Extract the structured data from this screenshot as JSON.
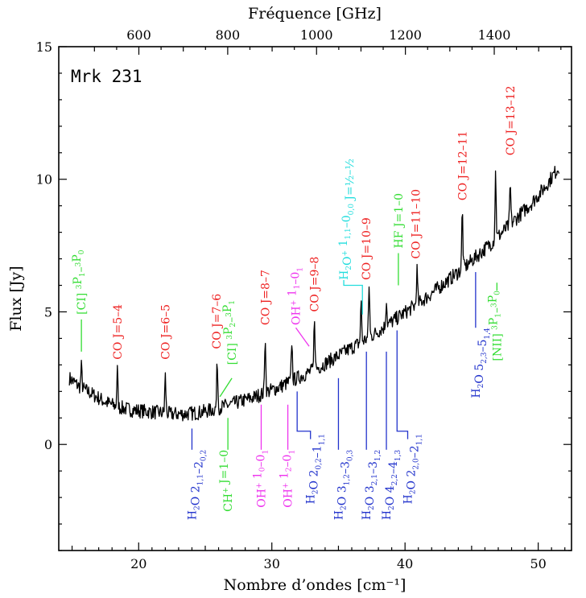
{
  "chart_data": {
    "type": "line",
    "object": "Mrk 231",
    "xlabel": "Nombre d’ondes [cm⁻¹]",
    "top_xlabel": "Fréquence [GHz]",
    "ylabel": "Flux [Jy]",
    "xlim": [
      14,
      52.5
    ],
    "ylim": [
      -4,
      15
    ],
    "xticks": [
      20,
      30,
      40,
      50
    ],
    "yticks": [
      0,
      5,
      10,
      15
    ],
    "top_ticks_ghz": [
      600,
      800,
      1000,
      1200,
      1400
    ],
    "continuum": {
      "description_points": [
        [
          14.8,
          2.5
        ],
        [
          15.5,
          2.2
        ],
        [
          16.5,
          1.9
        ],
        [
          17.5,
          1.6
        ],
        [
          18.5,
          1.4
        ],
        [
          19.5,
          1.3
        ],
        [
          20.5,
          1.25
        ],
        [
          21.5,
          1.2
        ],
        [
          22.5,
          1.15
        ],
        [
          23.5,
          1.15
        ],
        [
          24.5,
          1.2
        ],
        [
          25.5,
          1.3
        ],
        [
          26.5,
          1.45
        ],
        [
          27.5,
          1.6
        ],
        [
          28.5,
          1.75
        ],
        [
          29.5,
          1.95
        ],
        [
          30.5,
          2.15
        ],
        [
          31.5,
          2.4
        ],
        [
          32.5,
          2.65
        ],
        [
          33.5,
          2.9
        ],
        [
          34.5,
          3.2
        ],
        [
          35.5,
          3.5
        ],
        [
          36.5,
          3.8
        ],
        [
          37.5,
          4.1
        ],
        [
          38.5,
          4.45
        ],
        [
          39.5,
          4.8
        ],
        [
          40.5,
          5.15
        ],
        [
          41.5,
          5.5
        ],
        [
          42.5,
          5.9
        ],
        [
          43.5,
          6.3
        ],
        [
          44.5,
          6.7
        ],
        [
          45.5,
          7.15
        ],
        [
          46.5,
          7.6
        ],
        [
          47.5,
          8.1
        ],
        [
          48.5,
          8.6
        ],
        [
          49.5,
          9.1
        ],
        [
          50.5,
          9.7
        ],
        [
          51.6,
          10.5
        ]
      ],
      "peaks": [
        {
          "x": 15.7,
          "h": 0.8
        },
        {
          "x": 18.4,
          "h": 1.4
        },
        {
          "x": 22.0,
          "h": 1.4
        },
        {
          "x": 25.9,
          "h": 1.8
        },
        {
          "x": 29.5,
          "h": 2.2
        },
        {
          "x": 31.5,
          "h": 1.5
        },
        {
          "x": 33.2,
          "h": 2.0
        },
        {
          "x": 36.7,
          "h": 1.5
        },
        {
          "x": 37.3,
          "h": 2.0
        },
        {
          "x": 38.6,
          "h": 1.0
        },
        {
          "x": 40.9,
          "h": 1.3
        },
        {
          "x": 44.3,
          "h": 2.2
        },
        {
          "x": 46.8,
          "h": 2.5
        },
        {
          "x": 47.9,
          "h": 1.5
        }
      ]
    },
    "labels": [
      {
        "color": "#33dd33",
        "x": 15.7,
        "anchor": 3.5,
        "pos": 3.6,
        "parts": [
          [
            "[CI] "
          ],
          [
            "3",
            "sup"
          ],
          [
            "P"
          ],
          [
            "1",
            "sub"
          ],
          [
            "–"
          ],
          [
            "3",
            "sup"
          ],
          [
            "P"
          ],
          [
            "0",
            "sub"
          ]
        ]
      },
      {
        "color": "#ee2222",
        "x": 18.4,
        "pos": 3.2,
        "parts": [
          [
            "CO J=5–4"
          ]
        ]
      },
      {
        "color": "#ee2222",
        "x": 22.0,
        "pos": 3.2,
        "parts": [
          [
            "CO J=6–5"
          ]
        ]
      },
      {
        "color": "#ee2222",
        "x": 25.85,
        "pos": 3.6,
        "parts": [
          [
            "CO J=7–6"
          ]
        ]
      },
      {
        "color": "#33dd33",
        "x": 27.0,
        "anchor": 2.5,
        "leaderTo": 26.1,
        "pos": 3.0,
        "parts": [
          [
            "[CI] "
          ],
          [
            "3",
            "sup"
          ],
          [
            "P"
          ],
          [
            "2",
            "sub"
          ],
          [
            "–"
          ],
          [
            "3",
            "sup"
          ],
          [
            "P"
          ],
          [
            "1",
            "sub"
          ]
        ]
      },
      {
        "color": "#ee2222",
        "x": 29.5,
        "pos": 4.5,
        "parts": [
          [
            "CO J=8–7"
          ]
        ]
      },
      {
        "color": "#ee33ee",
        "x": 31.8,
        "anchor": 4.4,
        "leaderTo": 32.8,
        "pos": 4.5,
        "parts": [
          [
            "OH"
          ],
          [
            "+",
            "sup"
          ],
          [
            " 1"
          ],
          [
            "1",
            "sub"
          ],
          [
            "–0"
          ],
          [
            "1",
            "sub"
          ]
        ]
      },
      {
        "color": "#ee2222",
        "x": 33.2,
        "pos": 5.0,
        "parts": [
          [
            "CO J=9–8"
          ]
        ]
      },
      {
        "color": "#22dddd",
        "x": 35.4,
        "anchor": 6.0,
        "bracketTo": 36.8,
        "pos": 6.2,
        "parts": [
          [
            "H"
          ],
          [
            "2",
            "sub"
          ],
          [
            "O"
          ],
          [
            "+",
            "sup"
          ],
          [
            " 1"
          ],
          [
            "1,1",
            "sub"
          ],
          [
            "–0"
          ],
          [
            "0,0",
            "sub"
          ],
          [
            " J=½–½"
          ]
        ]
      },
      {
        "color": "#ee2222",
        "x": 37.1,
        "pos": 6.2,
        "parts": [
          [
            "CO J=10–9"
          ]
        ]
      },
      {
        "color": "#33dd33",
        "x": 39.5,
        "anchor": 6.0,
        "pos": 6.9,
        "parts": [
          [
            "HF J=1–0"
          ]
        ]
      },
      {
        "color": "#ee2222",
        "x": 40.8,
        "pos": 7.0,
        "parts": [
          [
            "CO J=11–10"
          ]
        ]
      },
      {
        "color": "#ee2222",
        "x": 44.3,
        "pos": 9.2,
        "parts": [
          [
            "CO J=12–11"
          ]
        ]
      },
      {
        "color": "#ee2222",
        "x": 47.9,
        "pos": 10.9,
        "parts": [
          [
            "CO J=13–12"
          ]
        ]
      },
      {
        "color": "#33dd33",
        "x": 46.9,
        "anchor": 6.1,
        "pos": 5.8,
        "below": true,
        "parts": [
          [
            "[NII] "
          ],
          [
            "3",
            "sup"
          ],
          [
            "P"
          ],
          [
            "1",
            "sub"
          ],
          [
            "–"
          ],
          [
            "3",
            "sup"
          ],
          [
            "P"
          ],
          [
            "0",
            "sub"
          ]
        ]
      },
      {
        "color": "#2233cc",
        "x": 45.3,
        "anchor": 6.5,
        "pos": 4.4,
        "below": true,
        "parts": [
          [
            "H"
          ],
          [
            "2",
            "sub"
          ],
          [
            "O 5"
          ],
          [
            "2,3",
            "sub"
          ],
          [
            "–5"
          ],
          [
            "1,4",
            "sub"
          ]
        ]
      },
      {
        "color": "#2233cc",
        "x": 24.0,
        "anchor": 0.6,
        "pos": -0.2,
        "below": true,
        "parts": [
          [
            "H"
          ],
          [
            "2",
            "sub"
          ],
          [
            "O 2"
          ],
          [
            "1,1",
            "sub"
          ],
          [
            "–2"
          ],
          [
            "0,2",
            "sub"
          ]
        ]
      },
      {
        "color": "#33dd33",
        "x": 26.7,
        "anchor": 1.0,
        "pos": -0.2,
        "below": true,
        "parts": [
          [
            "CH"
          ],
          [
            "+",
            "sup"
          ],
          [
            " J=1–0"
          ]
        ]
      },
      {
        "color": "#ee33ee",
        "x": 29.2,
        "anchor": 1.5,
        "pos": -0.2,
        "below": true,
        "parts": [
          [
            "OH"
          ],
          [
            "+",
            "sup"
          ],
          [
            " 1"
          ],
          [
            "0",
            "sub"
          ],
          [
            "–0"
          ],
          [
            "1",
            "sub"
          ]
        ]
      },
      {
        "color": "#ee33ee",
        "x": 31.2,
        "anchor": 1.5,
        "pos": -0.2,
        "below": true,
        "parts": [
          [
            "OH"
          ],
          [
            "+",
            "sup"
          ],
          [
            " 1"
          ],
          [
            "2",
            "sub"
          ],
          [
            "–0"
          ],
          [
            "1",
            "sub"
          ]
        ]
      },
      {
        "color": "#2233cc",
        "x": 32.9,
        "anchor": 2.0,
        "bracketFrom": 31.9,
        "pos": 0.4,
        "below": true,
        "parts": [
          [
            "H"
          ],
          [
            "2",
            "sub"
          ],
          [
            "O 2"
          ],
          [
            "0,2",
            "sub"
          ],
          [
            "–1"
          ],
          [
            "1,1",
            "sub"
          ]
        ]
      },
      {
        "color": "#2233cc",
        "x": 35.0,
        "anchor": 2.5,
        "pos": -0.2,
        "below": true,
        "parts": [
          [
            "H"
          ],
          [
            "2",
            "sub"
          ],
          [
            "O 3"
          ],
          [
            "1,2",
            "sub"
          ],
          [
            "–3"
          ],
          [
            "0,3",
            "sub"
          ]
        ]
      },
      {
        "color": "#2233cc",
        "x": 37.1,
        "anchor": 3.5,
        "pos": -0.2,
        "below": true,
        "parts": [
          [
            "H"
          ],
          [
            "2",
            "sub"
          ],
          [
            "O 3"
          ],
          [
            "2,1",
            "sub"
          ],
          [
            "–3"
          ],
          [
            "1,2",
            "sub"
          ]
        ]
      },
      {
        "color": "#2233cc",
        "x": 38.6,
        "anchor": 3.5,
        "pos": -0.2,
        "below": true,
        "parts": [
          [
            "H"
          ],
          [
            "2",
            "sub"
          ],
          [
            "O 4"
          ],
          [
            "2,2",
            "sub"
          ],
          [
            "–4"
          ],
          [
            "1,3",
            "sub"
          ]
        ]
      },
      {
        "color": "#2233cc",
        "x": 40.2,
        "anchor": 4.3,
        "bracketFrom": 39.4,
        "pos": 0.4,
        "below": true,
        "parts": [
          [
            "H"
          ],
          [
            "2",
            "sub"
          ],
          [
            "O 2"
          ],
          [
            "2,0",
            "sub"
          ],
          [
            "–2"
          ],
          [
            "1,1",
            "sub"
          ]
        ]
      }
    ]
  }
}
